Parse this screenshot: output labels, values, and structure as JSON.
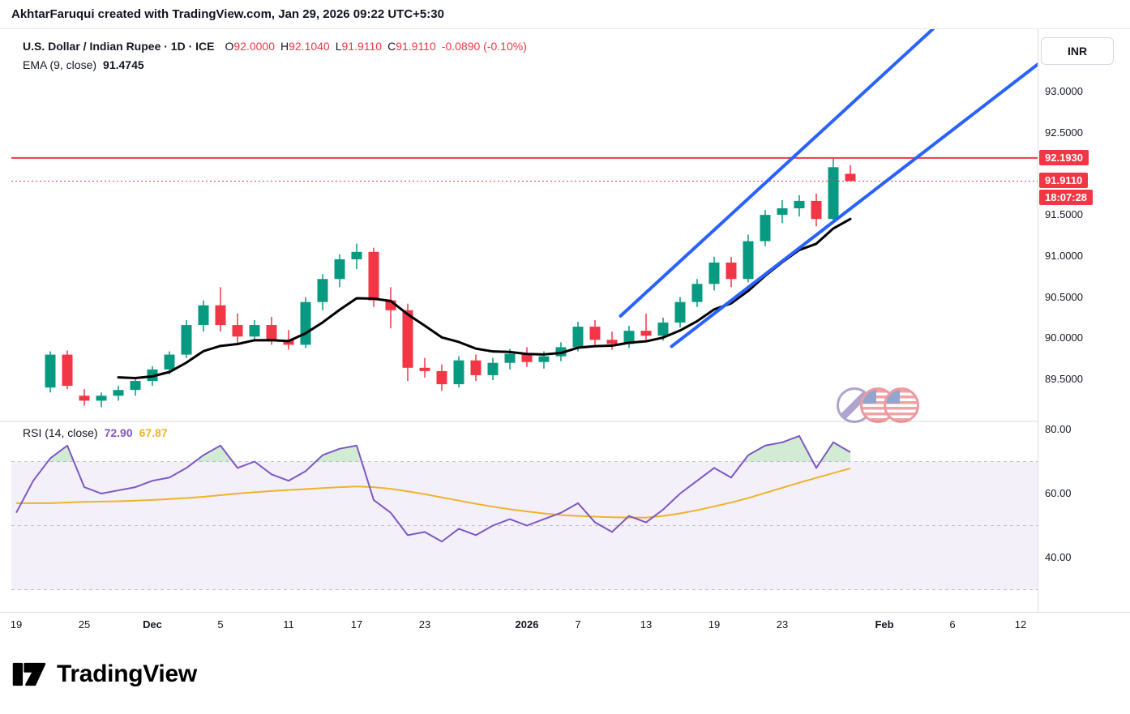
{
  "header": {
    "text": "AkhtarFaruqui created with TradingView.com, Jan 29, 2026 09:22 UTC+5:30"
  },
  "legend": {
    "title": "U.S. Dollar / Indian Rupee · 1D · ICE",
    "ohlc": [
      {
        "k": "O",
        "v": "92.0000"
      },
      {
        "k": "H",
        "v": "92.1040"
      },
      {
        "k": "L",
        "v": "91.9110"
      },
      {
        "k": "C",
        "v": "91.9110"
      }
    ],
    "change": "-0.0890 (-0.10%)",
    "ema_label": "EMA (9, close)",
    "ema_value": "91.4745"
  },
  "rsi_legend": {
    "label": "RSI (14, close)",
    "value": "72.90",
    "ma_value": "67.87"
  },
  "axis": {
    "currency": "INR",
    "price_ticks": [
      {
        "label": "93.0000",
        "value": 93.0
      },
      {
        "label": "92.5000",
        "value": 92.5
      },
      {
        "label": "91.5000",
        "value": 91.5
      },
      {
        "label": "91.0000",
        "value": 91.0
      },
      {
        "label": "90.5000",
        "value": 90.5
      },
      {
        "label": "90.0000",
        "value": 90.0
      },
      {
        "label": "89.5000",
        "value": 89.5
      }
    ],
    "rsi_ticks": [
      {
        "label": "80.00",
        "value": 80
      },
      {
        "label": "60.00",
        "value": 60
      },
      {
        "label": "40.00",
        "value": 40
      }
    ],
    "time_ticks": [
      {
        "label": "19",
        "bar": -1
      },
      {
        "label": "25",
        "bar": 3
      },
      {
        "label": "Dec",
        "bar": 7,
        "bold": true
      },
      {
        "label": "5",
        "bar": 11
      },
      {
        "label": "11",
        "bar": 15
      },
      {
        "label": "17",
        "bar": 19
      },
      {
        "label": "23",
        "bar": 23
      },
      {
        "label": "2026",
        "bar": 29,
        "bold": true
      },
      {
        "label": "7",
        "bar": 32
      },
      {
        "label": "13",
        "bar": 36
      },
      {
        "label": "19",
        "bar": 40
      },
      {
        "label": "23",
        "bar": 44
      },
      {
        "label": "Feb",
        "bar": 50,
        "bold": true
      },
      {
        "label": "6",
        "bar": 54
      },
      {
        "label": "12",
        "bar": 58
      }
    ]
  },
  "badges": {
    "hline": "92.1930",
    "price": "91.9110",
    "countdown": "18:07:28"
  },
  "footer": {
    "brand": "TradingView"
  },
  "colors": {
    "up": "#089981",
    "down": "#f23645",
    "ema": "#000000",
    "trend": "#2962ff",
    "rsi": "#7e57c2",
    "rsi_ma": "#efb32a",
    "band_fill": "rgba(126,87,194,0.09)",
    "band_line": "#9598a1",
    "overbought_fill": "rgba(76,175,80,0.25)",
    "separator": "#d6d9e0"
  },
  "chart_data": {
    "type": "candlestick",
    "title": "U.S. Dollar / Indian Rupee",
    "symbol": "USDINR",
    "interval": "1D",
    "exchange": "ICE",
    "price_axis_range_visible": [
      89.1,
      93.76
    ],
    "hline": 92.193,
    "last_price": 91.911,
    "ema": {
      "period": 9,
      "value": 91.4745
    },
    "candles": [
      {
        "t": "Nov 21",
        "o": 89.4,
        "h": 89.84,
        "l": 89.34,
        "c": 89.8
      },
      {
        "t": "Nov 24",
        "o": 89.8,
        "h": 89.85,
        "l": 89.38,
        "c": 89.42
      },
      {
        "t": "Nov 25",
        "o": 89.3,
        "h": 89.38,
        "l": 89.18,
        "c": 89.24
      },
      {
        "t": "Nov 26",
        "o": 89.24,
        "h": 89.34,
        "l": 89.16,
        "c": 89.3
      },
      {
        "t": "Nov 27",
        "o": 89.3,
        "h": 89.42,
        "l": 89.24,
        "c": 89.37
      },
      {
        "t": "Nov 28",
        "o": 89.37,
        "h": 89.52,
        "l": 89.3,
        "c": 89.48
      },
      {
        "t": "Dec 1",
        "o": 89.48,
        "h": 89.66,
        "l": 89.42,
        "c": 89.62
      },
      {
        "t": "Dec 2",
        "o": 89.62,
        "h": 89.84,
        "l": 89.56,
        "c": 89.8
      },
      {
        "t": "Dec 3",
        "o": 89.8,
        "h": 90.22,
        "l": 89.76,
        "c": 90.16
      },
      {
        "t": "Dec 4",
        "o": 90.16,
        "h": 90.46,
        "l": 90.08,
        "c": 90.4
      },
      {
        "t": "Dec 5",
        "o": 90.4,
        "h": 90.62,
        "l": 90.08,
        "c": 90.16
      },
      {
        "t": "Dec 8",
        "o": 90.16,
        "h": 90.3,
        "l": 89.94,
        "c": 90.02
      },
      {
        "t": "Dec 9",
        "o": 90.02,
        "h": 90.22,
        "l": 89.96,
        "c": 90.16
      },
      {
        "t": "Dec 10",
        "o": 90.16,
        "h": 90.26,
        "l": 89.92,
        "c": 89.98
      },
      {
        "t": "Dec 11",
        "o": 89.98,
        "h": 90.1,
        "l": 89.86,
        "c": 89.92
      },
      {
        "t": "Dec 12",
        "o": 89.92,
        "h": 90.5,
        "l": 89.88,
        "c": 90.44
      },
      {
        "t": "Dec 15",
        "o": 90.44,
        "h": 90.78,
        "l": 90.34,
        "c": 90.72
      },
      {
        "t": "Dec 16",
        "o": 90.72,
        "h": 91.02,
        "l": 90.62,
        "c": 90.96
      },
      {
        "t": "Dec 17",
        "o": 90.96,
        "h": 91.15,
        "l": 90.84,
        "c": 91.05
      },
      {
        "t": "Dec 18",
        "o": 91.05,
        "h": 91.1,
        "l": 90.38,
        "c": 90.46
      },
      {
        "t": "Dec 19",
        "o": 90.46,
        "h": 90.62,
        "l": 90.12,
        "c": 90.34
      },
      {
        "t": "Dec 22",
        "o": 90.34,
        "h": 90.42,
        "l": 89.48,
        "c": 89.64
      },
      {
        "t": "Dec 23",
        "o": 89.64,
        "h": 89.76,
        "l": 89.52,
        "c": 89.6
      },
      {
        "t": "Dec 24",
        "o": 89.6,
        "h": 89.68,
        "l": 89.36,
        "c": 89.44
      },
      {
        "t": "Dec 26",
        "o": 89.44,
        "h": 89.78,
        "l": 89.4,
        "c": 89.73
      },
      {
        "t": "Dec 29",
        "o": 89.73,
        "h": 89.8,
        "l": 89.48,
        "c": 89.55
      },
      {
        "t": "Dec 30",
        "o": 89.55,
        "h": 89.76,
        "l": 89.49,
        "c": 89.7
      },
      {
        "t": "Dec 31",
        "o": 89.7,
        "h": 89.87,
        "l": 89.62,
        "c": 89.81
      },
      {
        "t": "Jan 2",
        "o": 89.81,
        "h": 89.89,
        "l": 89.65,
        "c": 89.71
      },
      {
        "t": "Jan 5",
        "o": 89.71,
        "h": 89.84,
        "l": 89.63,
        "c": 89.78
      },
      {
        "t": "Jan 6",
        "o": 89.78,
        "h": 89.95,
        "l": 89.72,
        "c": 89.89
      },
      {
        "t": "Jan 7",
        "o": 89.89,
        "h": 90.2,
        "l": 89.84,
        "c": 90.14
      },
      {
        "t": "Jan 8",
        "o": 90.14,
        "h": 90.22,
        "l": 89.92,
        "c": 89.98
      },
      {
        "t": "Jan 9",
        "o": 89.98,
        "h": 90.08,
        "l": 89.86,
        "c": 89.93
      },
      {
        "t": "Jan 12",
        "o": 89.93,
        "h": 90.15,
        "l": 89.88,
        "c": 90.09
      },
      {
        "t": "Jan 13",
        "o": 90.09,
        "h": 90.3,
        "l": 89.98,
        "c": 90.03
      },
      {
        "t": "Jan 14",
        "o": 90.03,
        "h": 90.25,
        "l": 89.97,
        "c": 90.19
      },
      {
        "t": "Jan 15",
        "o": 90.19,
        "h": 90.5,
        "l": 90.13,
        "c": 90.44
      },
      {
        "t": "Jan 16",
        "o": 90.44,
        "h": 90.72,
        "l": 90.38,
        "c": 90.66
      },
      {
        "t": "Jan 19",
        "o": 90.66,
        "h": 90.99,
        "l": 90.58,
        "c": 90.92
      },
      {
        "t": "Jan 20",
        "o": 90.92,
        "h": 90.99,
        "l": 90.62,
        "c": 90.72
      },
      {
        "t": "Jan 21",
        "o": 90.72,
        "h": 91.26,
        "l": 90.68,
        "c": 91.18
      },
      {
        "t": "Jan 22",
        "o": 91.18,
        "h": 91.56,
        "l": 91.12,
        "c": 91.5
      },
      {
        "t": "Jan 23",
        "o": 91.5,
        "h": 91.68,
        "l": 91.4,
        "c": 91.58
      },
      {
        "t": "Jan 26",
        "o": 91.58,
        "h": 91.74,
        "l": 91.48,
        "c": 91.67
      },
      {
        "t": "Jan 27",
        "o": 91.67,
        "h": 91.76,
        "l": 91.36,
        "c": 91.45
      },
      {
        "t": "Jan 28",
        "o": 91.45,
        "h": 92.19,
        "l": 91.41,
        "c": 92.08
      },
      {
        "t": "Jan 29",
        "o": 92.0,
        "h": 92.104,
        "l": 91.911,
        "c": 91.911
      }
    ],
    "trendlines": [
      {
        "b1": 34.5,
        "p1": 90.27,
        "b2": 53.0,
        "p2": 93.79
      },
      {
        "b1": 37.5,
        "p1": 89.9,
        "b2": 59.5,
        "p2": 93.41
      }
    ],
    "rsi_panel": {
      "period": 14,
      "value": 72.9,
      "ma_value": 67.87,
      "bands": [
        70,
        50,
        30
      ],
      "axis_range_visible": [
        24,
        82
      ],
      "start_bar": -1,
      "rsi": [
        54,
        64,
        71,
        75,
        62,
        60,
        61,
        62,
        64,
        65,
        68,
        72,
        75,
        68,
        70,
        66,
        64,
        67,
        72,
        74,
        75,
        58,
        54,
        47,
        48,
        45,
        49,
        47,
        50,
        52,
        50,
        52,
        54,
        57,
        51,
        48,
        53,
        51,
        55,
        60,
        64,
        68,
        65,
        72,
        75,
        76,
        78,
        68,
        76,
        72.9
      ],
      "rsi_ma": [
        57.0,
        57.0,
        57.0,
        57.2,
        57.4,
        57.5,
        57.6,
        57.8,
        58.0,
        58.3,
        58.6,
        59.0,
        59.5,
        60.0,
        60.4,
        60.8,
        61.1,
        61.4,
        61.7,
        62.0,
        62.2,
        62.0,
        61.5,
        60.7,
        59.8,
        58.8,
        57.8,
        56.8,
        55.9,
        55.1,
        54.4,
        53.8,
        53.3,
        53.0,
        52.8,
        52.6,
        52.5,
        52.5,
        53.0,
        53.8,
        54.8,
        56.0,
        57.2,
        58.6,
        60.2,
        61.8,
        63.4,
        64.9,
        66.4,
        67.87
      ]
    }
  }
}
